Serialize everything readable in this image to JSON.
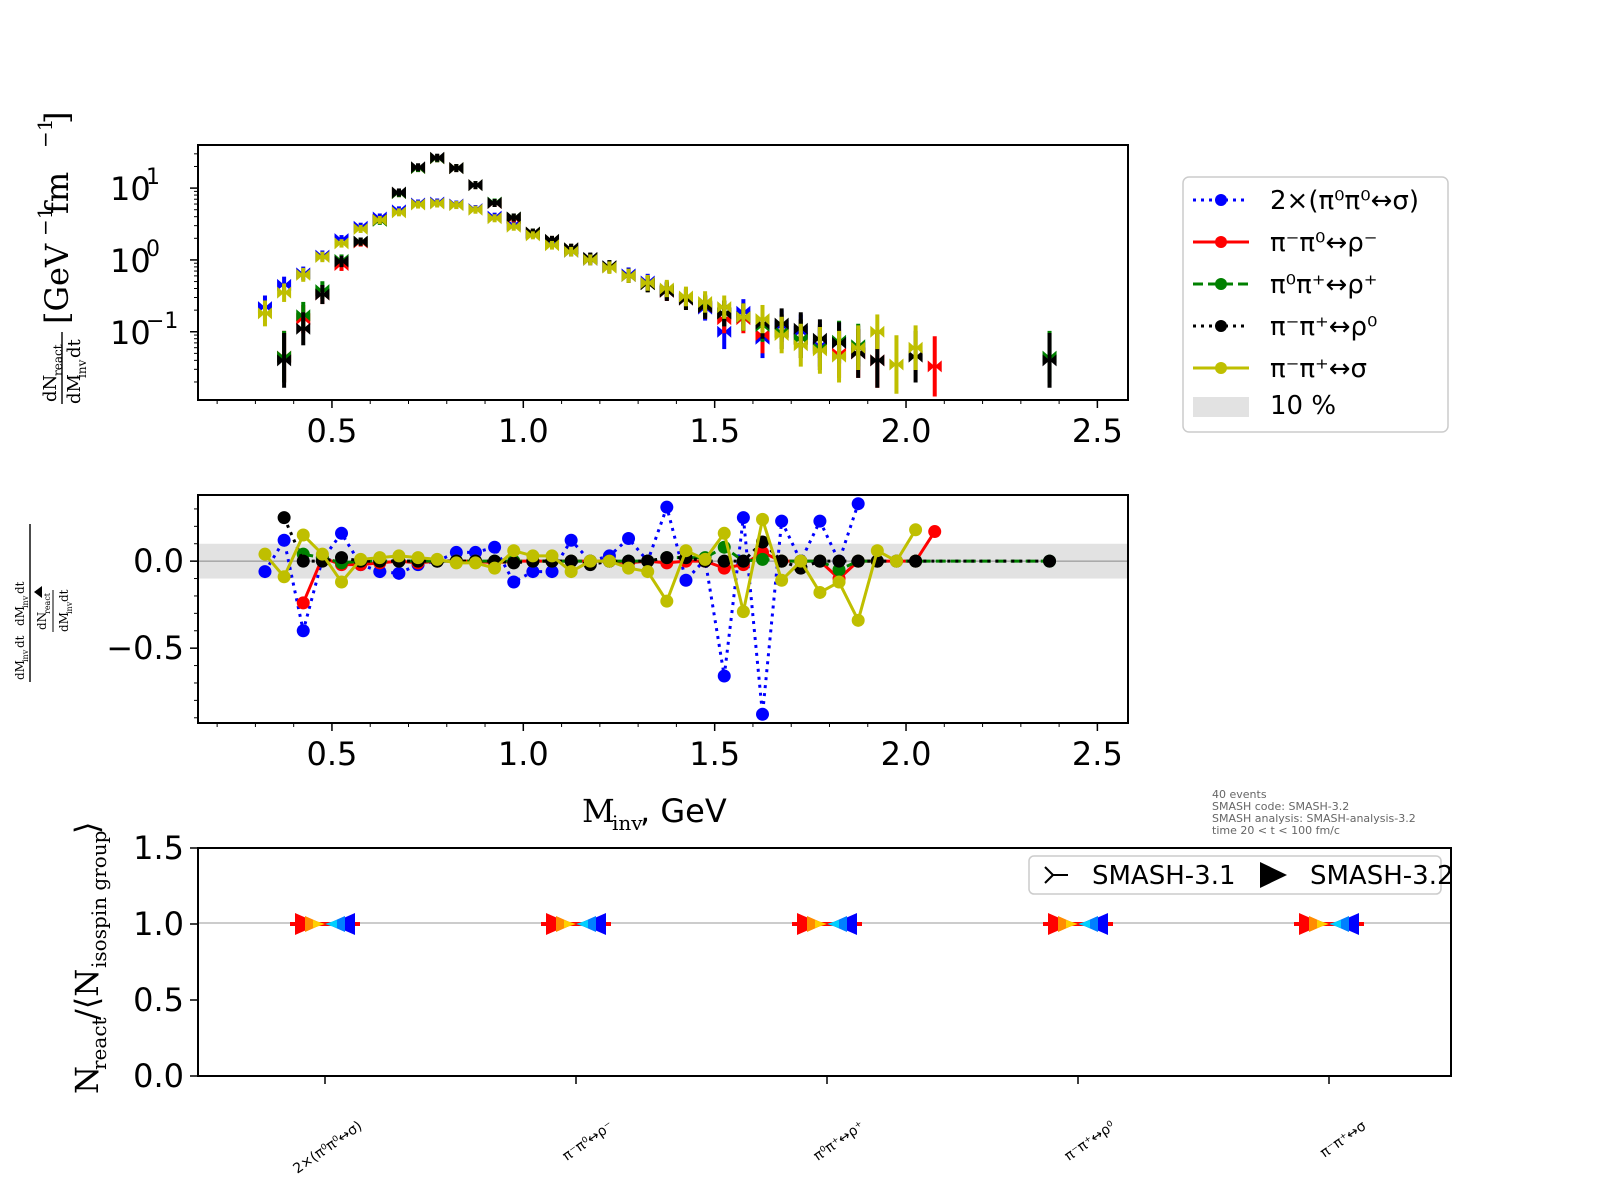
{
  "chart_data": [
    {
      "id": "spectrum",
      "type": "scatter",
      "ylabel_prefix": "dN",
      "ylabel_sub_top": "react",
      "ylabel_mid": "dM",
      "ylabel_sub_bot": "inv",
      "ylabel_suffix": "dt",
      "ylabel_unit": "[GeV",
      "ylabel_unit_exp": "−1",
      "ylabel_unit2": " fm",
      "ylabel_unit2_exp": "−1",
      "ylabel_unit_close": "]",
      "xlim": [
        0.15,
        2.58
      ],
      "ylim_log10": [
        -1.95,
        1.6
      ],
      "yscale": "log",
      "xticks": [
        "0.5",
        "1.0",
        "1.5",
        "2.0",
        "2.5"
      ],
      "xtick_values": [
        0.5,
        1.0,
        1.5,
        2.0,
        2.5
      ],
      "yticks": [
        {
          "base": "10",
          "exp": "1",
          "value": 1
        },
        {
          "base": "10",
          "exp": "0",
          "value": 0
        },
        {
          "base": "10",
          "exp": "−1",
          "value": -1
        }
      ],
      "series": [
        {
          "name": "2×(π⁰π⁰↔σ)",
          "color": "#0000ff",
          "style": "dotted",
          "x": [
            0.325,
            0.375,
            0.425,
            0.475,
            0.525,
            0.575,
            0.625,
            0.675,
            0.725,
            0.775,
            0.825,
            0.875,
            0.925,
            0.975,
            1.025,
            1.075,
            1.125,
            1.175,
            1.225,
            1.275,
            1.325,
            1.375,
            1.425,
            1.475,
            1.525,
            1.575,
            1.625,
            1.675,
            1.725,
            1.775,
            1.825,
            1.875
          ],
          "y": [
            0.22,
            0.45,
            0.65,
            1.15,
            1.95,
            2.9,
            3.9,
            4.9,
            6.1,
            6.3,
            5.9,
            5.1,
            4.0,
            3.1,
            2.3,
            1.65,
            1.3,
            1.0,
            0.8,
            0.63,
            0.5,
            0.37,
            0.29,
            0.21,
            0.1,
            0.19,
            0.08,
            0.12,
            0.1,
            0.065,
            0.07,
            0.06
          ]
        },
        {
          "name": "π⁻π⁰↔ρ⁻",
          "color": "#ff0000",
          "style": "solid",
          "x": [
            0.375,
            0.425,
            0.475,
            0.525,
            0.575,
            0.625,
            0.675,
            0.725,
            0.775,
            0.825,
            0.875,
            0.925,
            0.975,
            1.025,
            1.075,
            1.125,
            1.175,
            1.225,
            1.275,
            1.325,
            1.375,
            1.425,
            1.475,
            1.525,
            1.575,
            1.625,
            1.675,
            1.725,
            1.775,
            1.825,
            1.875,
            1.925,
            2.075
          ],
          "y": [
            0.045,
            0.15,
            0.33,
            0.85,
            1.75,
            3.6,
            8.5,
            19,
            26,
            19,
            11,
            6.2,
            3.8,
            2.4,
            1.9,
            1.45,
            1.05,
            0.8,
            0.6,
            0.46,
            0.36,
            0.28,
            0.22,
            0.15,
            0.15,
            0.09,
            0.1,
            0.08,
            0.06,
            0.05,
            0.05,
            0.04,
            0.033
          ]
        },
        {
          "name": "π⁰π⁺↔ρ⁺",
          "color": "#008000",
          "style": "dashed",
          "x": [
            0.375,
            0.425,
            0.475,
            0.525,
            0.575,
            0.625,
            0.675,
            0.725,
            0.775,
            0.825,
            0.875,
            0.925,
            0.975,
            1.025,
            1.075,
            1.125,
            1.175,
            1.225,
            1.275,
            1.325,
            1.375,
            1.425,
            1.475,
            1.525,
            1.575,
            1.625,
            1.675,
            1.725,
            1.775,
            1.825,
            1.875,
            2.375
          ],
          "y": [
            0.045,
            0.17,
            0.38,
            1.0,
            1.8,
            3.5,
            8.5,
            19,
            26,
            19,
            11,
            6.3,
            3.9,
            2.4,
            1.9,
            1.45,
            1.05,
            0.8,
            0.6,
            0.46,
            0.38,
            0.29,
            0.23,
            0.18,
            0.16,
            0.12,
            0.1,
            0.08,
            0.06,
            0.075,
            0.065,
            0.045
          ]
        },
        {
          "name": "π⁻π⁺↔ρ⁰",
          "color": "#000000",
          "style": "dotted",
          "x": [
            0.375,
            0.425,
            0.475,
            0.525,
            0.575,
            0.625,
            0.675,
            0.725,
            0.775,
            0.825,
            0.875,
            0.925,
            0.975,
            1.025,
            1.075,
            1.125,
            1.175,
            1.225,
            1.275,
            1.325,
            1.375,
            1.425,
            1.475,
            1.525,
            1.575,
            1.625,
            1.675,
            1.725,
            1.775,
            1.825,
            1.875,
            1.925,
            2.025,
            2.375
          ],
          "y": [
            0.04,
            0.11,
            0.33,
            0.95,
            1.8,
            3.6,
            8.7,
            19.5,
            26.5,
            19,
            11,
            6.2,
            3.9,
            2.4,
            1.9,
            1.45,
            1.07,
            0.82,
            0.6,
            0.46,
            0.36,
            0.28,
            0.22,
            0.18,
            0.16,
            0.13,
            0.13,
            0.11,
            0.08,
            0.07,
            0.05,
            0.04,
            0.045,
            0.04
          ]
        },
        {
          "name": "π⁻π⁺↔σ",
          "color": "#bfbf00",
          "style": "solid",
          "x": [
            0.325,
            0.375,
            0.425,
            0.475,
            0.525,
            0.575,
            0.625,
            0.675,
            0.725,
            0.775,
            0.825,
            0.875,
            0.925,
            0.975,
            1.025,
            1.075,
            1.125,
            1.175,
            1.225,
            1.275,
            1.325,
            1.375,
            1.425,
            1.475,
            1.525,
            1.575,
            1.625,
            1.675,
            1.725,
            1.775,
            1.825,
            1.875,
            1.925,
            1.975,
            2.025
          ],
          "y": [
            0.18,
            0.35,
            0.62,
            1.1,
            1.7,
            2.7,
            3.6,
            4.6,
            5.9,
            6.1,
            5.8,
            5.0,
            3.8,
            2.9,
            2.2,
            1.6,
            1.3,
            1.0,
            0.78,
            0.6,
            0.48,
            0.4,
            0.31,
            0.26,
            0.22,
            0.16,
            0.15,
            0.09,
            0.065,
            0.055,
            0.045,
            0.06,
            0.1,
            0.035,
            0.06
          ]
        }
      ]
    },
    {
      "id": "ratio",
      "type": "line",
      "ylabel_top_num": "dN",
      "ylabel_top_num_sub": "react",
      "ylabel_top_den": "dM",
      "ylabel_top_den_sub": "inv",
      "ylabel_top_den_suffix": "dt",
      "xlabel_main": "M",
      "xlabel_sub": "inv",
      "xlabel_rest": ", GeV",
      "xlim": [
        0.15,
        2.58
      ],
      "ylim": [
        -0.93,
        0.38
      ],
      "xticks": [
        "0.5",
        "1.0",
        "1.5",
        "2.0",
        "2.5"
      ],
      "xtick_values": [
        0.5,
        1.0,
        1.5,
        2.0,
        2.5
      ],
      "yticks": [
        "0.0",
        "−0.5"
      ],
      "ytick_values": [
        0.0,
        -0.5
      ],
      "band": [
        -0.1,
        0.1
      ],
      "series": [
        {
          "name": "2×(π⁰π⁰↔σ)",
          "color": "#0000ff",
          "style": "dotted",
          "x": [
            0.325,
            0.375,
            0.425,
            0.475,
            0.525,
            0.575,
            0.625,
            0.675,
            0.725,
            0.775,
            0.825,
            0.875,
            0.925,
            0.975,
            1.025,
            1.075,
            1.125,
            1.175,
            1.225,
            1.275,
            1.325,
            1.375,
            1.425,
            1.475,
            1.525,
            1.575,
            1.625,
            1.675,
            1.725,
            1.775,
            1.825,
            1.875
          ],
          "y": [
            -0.06,
            0.12,
            -0.4,
            0.01,
            0.16,
            -0.02,
            -0.06,
            -0.07,
            -0.02,
            0.0,
            0.05,
            0.05,
            0.08,
            -0.12,
            -0.06,
            -0.06,
            0.12,
            0.0,
            0.03,
            0.13,
            0.0,
            0.31,
            -0.11,
            0.01,
            -0.66,
            0.25,
            -0.88,
            0.23,
            0.0,
            0.23,
            0.0,
            0.33
          ]
        },
        {
          "name": "π⁻π⁰↔ρ⁻",
          "color": "#ff0000",
          "style": "solid",
          "x": [
            0.425,
            0.475,
            0.525,
            0.575,
            0.625,
            0.675,
            0.725,
            0.775,
            0.825,
            0.875,
            0.925,
            0.975,
            1.025,
            1.075,
            1.125,
            1.175,
            1.225,
            1.275,
            1.325,
            1.375,
            1.425,
            1.475,
            1.525,
            1.575,
            1.625,
            1.675,
            1.725,
            1.775,
            1.825,
            1.875,
            1.925,
            1.975,
            2.025,
            2.075
          ],
          "y": [
            -0.24,
            0.02,
            -0.02,
            -0.02,
            -0.01,
            0.0,
            -0.01,
            0.0,
            0.0,
            0.0,
            -0.01,
            0.0,
            0.0,
            0.0,
            0.0,
            0.0,
            0.0,
            -0.01,
            0.0,
            -0.01,
            0.0,
            0.0,
            -0.04,
            -0.02,
            0.05,
            0.0,
            0.0,
            0.0,
            -0.1,
            0.0,
            0.0,
            0.0,
            0.0,
            0.17
          ]
        },
        {
          "name": "π⁰π⁺↔ρ⁺",
          "color": "#008000",
          "style": "dashed",
          "x": [
            0.425,
            0.475,
            0.525,
            0.575,
            0.625,
            0.675,
            0.725,
            0.775,
            0.825,
            0.875,
            0.925,
            0.975,
            1.025,
            1.075,
            1.125,
            1.175,
            1.225,
            1.275,
            1.325,
            1.375,
            1.425,
            1.475,
            1.525,
            1.575,
            1.625,
            1.675,
            1.725,
            1.775,
            1.825,
            1.875,
            1.925,
            1.975,
            2.025,
            2.375
          ],
          "y": [
            0.04,
            0.02,
            -0.01,
            0.0,
            0.0,
            0.0,
            0.0,
            0.0,
            0.0,
            0.0,
            0.0,
            0.0,
            0.0,
            0.0,
            0.0,
            0.0,
            0.0,
            0.0,
            0.0,
            0.02,
            0.02,
            0.02,
            0.08,
            0.0,
            0.01,
            0.0,
            0.0,
            0.0,
            -0.05,
            0.0,
            0.0,
            0.0,
            0.0,
            0.0
          ]
        },
        {
          "name": "π⁻π⁺↔ρ⁰",
          "color": "#000000",
          "style": "dotted",
          "x": [
            0.375,
            0.425,
            0.475,
            0.525,
            0.575,
            0.625,
            0.675,
            0.725,
            0.775,
            0.825,
            0.875,
            0.925,
            0.975,
            1.025,
            1.075,
            1.125,
            1.175,
            1.225,
            1.275,
            1.325,
            1.375,
            1.425,
            1.475,
            1.525,
            1.575,
            1.625,
            1.675,
            1.725,
            1.775,
            1.825,
            1.875,
            1.925,
            2.025,
            2.375
          ],
          "y": [
            0.25,
            0.0,
            0.0,
            0.02,
            0.0,
            0.0,
            0.0,
            0.0,
            0.0,
            0.0,
            0.0,
            0.0,
            -0.01,
            0.0,
            0.0,
            0.0,
            -0.02,
            0.0,
            0.0,
            0.0,
            0.02,
            0.02,
            0.0,
            0.0,
            0.0,
            0.11,
            0.0,
            -0.04,
            0.0,
            0.0,
            0.0,
            0.0,
            0.0,
            0.0
          ]
        },
        {
          "name": "π⁻π⁺↔σ",
          "color": "#bfbf00",
          "style": "solid",
          "x": [
            0.325,
            0.375,
            0.425,
            0.475,
            0.525,
            0.575,
            0.625,
            0.675,
            0.725,
            0.775,
            0.825,
            0.875,
            0.925,
            0.975,
            1.025,
            1.075,
            1.125,
            1.175,
            1.225,
            1.275,
            1.325,
            1.375,
            1.425,
            1.475,
            1.525,
            1.575,
            1.625,
            1.675,
            1.725,
            1.775,
            1.825,
            1.875,
            1.925,
            1.975,
            2.025
          ],
          "y": [
            0.04,
            -0.09,
            0.15,
            0.04,
            -0.12,
            0.01,
            0.02,
            0.03,
            0.02,
            0.01,
            -0.01,
            -0.01,
            -0.04,
            0.06,
            0.03,
            0.03,
            -0.06,
            0.0,
            0.0,
            -0.04,
            -0.06,
            -0.23,
            0.06,
            0.01,
            0.16,
            -0.29,
            0.24,
            -0.11,
            0.0,
            -0.18,
            -0.12,
            -0.34,
            0.06,
            0.0,
            0.18
          ]
        }
      ]
    },
    {
      "id": "yields",
      "type": "scatter",
      "ylabel_main": "N",
      "ylabel_sub": "react",
      "ylabel_rest": "/⟨N",
      "ylabel_sub2": "isospin group",
      "ylabel_close": "⟩",
      "ylim": [
        0.0,
        1.5
      ],
      "yticks": [
        "0.0",
        "0.5",
        "1.0",
        "1.5"
      ],
      "ytick_values": [
        0.0,
        0.5,
        1.0,
        1.5
      ],
      "categories": [
        "2×(π⁰π⁰↔σ)",
        "π⁻π⁰↔ρ⁻",
        "π⁰π⁺↔ρ⁺",
        "π⁻π⁺↔ρ⁰",
        "π⁻π⁺↔σ"
      ],
      "series": [
        {
          "name": "SMASH-3.1",
          "values": [
            1.0,
            1.0,
            1.0,
            1.0,
            1.0
          ]
        },
        {
          "name": "SMASH-3.2",
          "values": [
            1.0,
            1.0,
            1.0,
            1.0,
            1.0
          ]
        }
      ]
    }
  ],
  "legend": {
    "items": [
      {
        "label": "2×(π⁰π⁰↔σ)",
        "color": "#0000ff",
        "style": "dotted"
      },
      {
        "label": "π⁻π⁰↔ρ⁻",
        "color": "#ff0000",
        "style": "solid"
      },
      {
        "label": "π⁰π⁺↔ρ⁺",
        "color": "#008000",
        "style": "dashed"
      },
      {
        "label": "π⁻π⁺↔ρ⁰",
        "color": "#000000",
        "style": "dotted"
      },
      {
        "label": "π⁻π⁺↔σ",
        "color": "#bfbf00",
        "style": "solid"
      }
    ],
    "band_label": "10 %"
  },
  "info": {
    "lines": [
      "40 events",
      "SMASH code:      SMASH-3.2",
      "SMASH analysis: SMASH-analysis-3.2",
      "time 20 < t < 100 fm/c"
    ]
  },
  "version_legend": {
    "items": [
      {
        "label": "SMASH-3.1",
        "marker": "tri-right"
      },
      {
        "label": "SMASH-3.2",
        "marker": "triangle-right"
      }
    ]
  }
}
